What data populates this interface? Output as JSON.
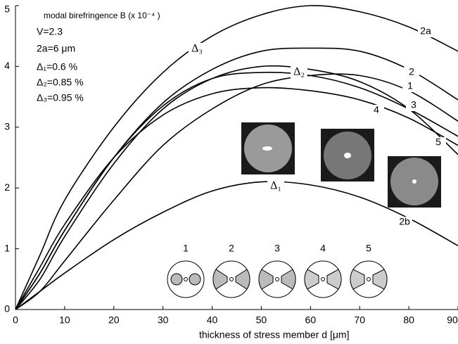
{
  "chart_data": {
    "type": "line",
    "ylabel": "modal birefringence   B (x 10⁻⁴ )",
    "xlabel": "thickness of stress member  d [μm]",
    "parameters": [
      "V=2.3",
      "2a=6 μm",
      "Δ₁=0.6 %",
      "Δ₂=0.85 %",
      "Δ₃=0.95 %"
    ],
    "annotations": [
      "Δ₃",
      "Δ₂",
      "Δ₁"
    ],
    "mode_labels": [
      "1",
      "2",
      "3",
      "4",
      "5"
    ],
    "x": [
      0,
      5,
      10,
      20,
      30,
      40,
      50,
      60,
      70,
      80,
      90
    ],
    "series": [
      {
        "name": "2a",
        "color": "#000000",
        "values": [
          0,
          0.9,
          1.8,
          3.0,
          3.9,
          4.5,
          4.85,
          5.0,
          4.9,
          4.65,
          4.25
        ]
      },
      {
        "name": "2",
        "color": "#000000",
        "values": [
          0,
          0.6,
          1.3,
          2.5,
          3.4,
          3.95,
          4.25,
          4.3,
          4.25,
          3.95,
          3.45
        ]
      },
      {
        "name": "1",
        "color": "#000000",
        "values": [
          0,
          0.3,
          0.8,
          1.8,
          2.7,
          3.3,
          3.7,
          3.85,
          3.85,
          3.6,
          3.1
        ]
      },
      {
        "name": "3",
        "color": "#000000",
        "values": [
          0,
          0.5,
          1.2,
          2.4,
          3.3,
          3.8,
          4.0,
          3.95,
          3.75,
          3.3,
          2.55
        ]
      },
      {
        "name": "4",
        "color": "#000000",
        "values": [
          0,
          0.7,
          1.4,
          2.5,
          3.2,
          3.55,
          3.65,
          3.6,
          3.45,
          3.15,
          2.7
        ]
      },
      {
        "name": "5",
        "color": "#000000",
        "values": [
          0,
          0.6,
          1.3,
          2.5,
          3.35,
          3.8,
          3.9,
          3.85,
          3.65,
          3.3,
          2.85
        ]
      },
      {
        "name": "2b",
        "color": "#000000",
        "values": [
          0,
          0.3,
          0.6,
          1.15,
          1.6,
          1.95,
          2.1,
          2.05,
          1.85,
          1.5,
          1.05
        ]
      }
    ],
    "xlim": [
      0,
      90
    ],
    "ylim": [
      0,
      5
    ],
    "xticks": [
      0,
      10,
      20,
      30,
      40,
      50,
      60,
      70,
      80,
      90
    ],
    "yticks": [
      0,
      1,
      2,
      3,
      4,
      5
    ],
    "grid": false
  }
}
